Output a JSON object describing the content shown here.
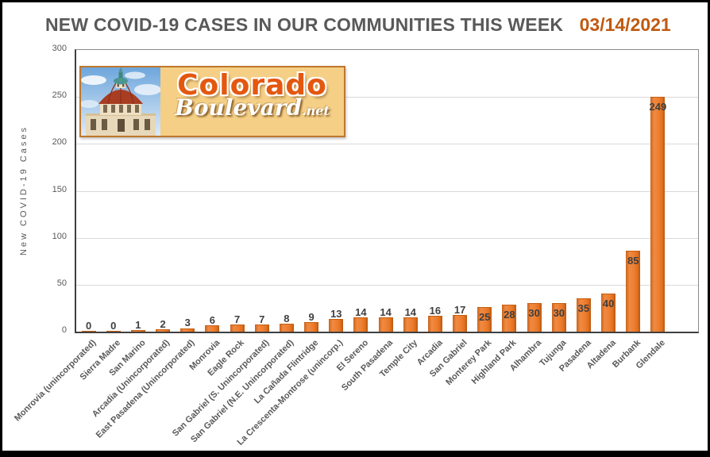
{
  "header": {
    "title": "NEW COVID-19 CASES IN OUR COMMUNITIES THIS WEEK",
    "date": "03/14/2021",
    "title_color": "#595959",
    "date_color": "#c05a11"
  },
  "logo": {
    "site_name": "ColoradoBoulevard.net",
    "line1": "Colorado",
    "line2": "Boulevard",
    "suffix": ".net",
    "bg_color": "#f4cf85",
    "border_color": "#bf772c",
    "line1_color": "#e4570f",
    "photo": "pasadena-city-hall-dome"
  },
  "chart_data": {
    "type": "bar",
    "title": "NEW COVID-19 CASES IN OUR COMMUNITIES THIS WEEK",
    "date_label": "03/14/2021",
    "ylabel": "New COVID-19 Cases",
    "xlabel": "",
    "ylim": [
      0,
      300
    ],
    "ytick_step": 50,
    "grid": true,
    "legend": false,
    "bar_color": "#ed7d31",
    "bar_border_color": "#c55f11",
    "value_label_color": "#3f3f3f",
    "categories": [
      "Monrovia (unincorporated)",
      "Sierra Madre",
      "San Marino",
      "Arcadia (Unincorporated)",
      "East Pasadena (Unincorporated)",
      "Monrovia",
      "Eagle Rock",
      "San Gabriel (S. Unincorporated)",
      "San Gabriel (N.E. Unincorporated)",
      "La Cañada Flintridge",
      "La Crescenta-Montrose (unincorp.)",
      "El Sereno",
      "South Pasadena",
      "Temple City",
      "Arcadia",
      "San Gabriel",
      "Monterey Park",
      "Highland Park",
      "Alhambra",
      "Tujunga",
      "Pasadena",
      "Altadena",
      "Burbank",
      "Glendale"
    ],
    "values": [
      0,
      0,
      1,
      2,
      3,
      6,
      7,
      7,
      8,
      9,
      13,
      14,
      14,
      14,
      16,
      17,
      25,
      28,
      30,
      30,
      35,
      40,
      85,
      249
    ]
  }
}
